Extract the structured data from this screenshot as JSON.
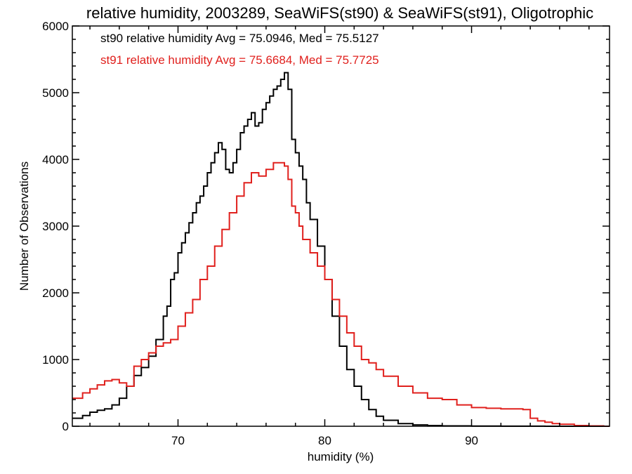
{
  "chart_data": {
    "type": "line",
    "title": "relative humidity, 2003289, SeaWiFS(st90) & SeaWiFS(st91), Oligotrophic",
    "xlabel": "humidity (%)",
    "ylabel": "Number of Observations",
    "xlim": [
      62.8,
      99.4
    ],
    "ylim": [
      0,
      6000
    ],
    "xticks": [
      70,
      80,
      90
    ],
    "yticks": [
      0,
      1000,
      2000,
      3000,
      4000,
      5000,
      6000
    ],
    "grid": false,
    "legend_placement": "top-left",
    "series": [
      {
        "legend": "st90 relative humidity Avg = 75.0946, Med = 75.5127",
        "color": "#000000",
        "x": [
          63,
          63.5,
          64,
          64.5,
          65,
          65.5,
          66,
          66.5,
          67,
          67.5,
          68,
          68.5,
          69,
          69.25,
          69.5,
          69.75,
          70,
          70.25,
          70.5,
          70.75,
          71,
          71.25,
          71.5,
          71.75,
          72,
          72.25,
          72.5,
          72.75,
          73,
          73.25,
          73.5,
          73.75,
          74,
          74.25,
          74.5,
          74.75,
          75,
          75.25,
          75.5,
          75.75,
          76,
          76.25,
          76.5,
          76.75,
          77,
          77.25,
          77.5,
          77.75,
          78,
          78.25,
          78.5,
          78.75,
          79,
          79.5,
          80,
          80.5,
          81,
          81.5,
          82,
          82.5,
          83,
          83.5,
          84,
          85,
          86,
          87,
          88,
          90,
          92,
          95,
          99
        ],
        "y": [
          120,
          160,
          210,
          240,
          260,
          320,
          420,
          600,
          760,
          880,
          1050,
          1300,
          1650,
          1800,
          2200,
          2300,
          2600,
          2750,
          2900,
          3050,
          3200,
          3350,
          3450,
          3600,
          3800,
          3950,
          4100,
          4250,
          4150,
          3850,
          3800,
          3950,
          4150,
          4400,
          4500,
          4600,
          4700,
          4500,
          4550,
          4750,
          4850,
          4950,
          5050,
          5100,
          5200,
          5300,
          5050,
          4300,
          4100,
          3900,
          3700,
          3350,
          3100,
          2700,
          2200,
          1650,
          1200,
          850,
          600,
          400,
          250,
          150,
          90,
          40,
          20,
          10,
          5,
          2,
          1,
          0,
          0
        ]
      },
      {
        "legend": "st91 relative humidity Avg = 75.6684, Med = 75.7725",
        "color": "#e0201d",
        "x": [
          63,
          63.5,
          64,
          64.5,
          65,
          65.5,
          66,
          66.5,
          67,
          67.5,
          68,
          68.5,
          69,
          69.5,
          70,
          70.5,
          71,
          71.5,
          72,
          72.5,
          73,
          73.5,
          74,
          74.5,
          75,
          75.5,
          76,
          76.5,
          77,
          77.25,
          77.5,
          77.75,
          78,
          78.25,
          78.5,
          79,
          79.5,
          80,
          80.5,
          81,
          81.5,
          82,
          82.5,
          83,
          83.5,
          84,
          85,
          86,
          87,
          88,
          89,
          90,
          91,
          92,
          93,
          93.5,
          94,
          94.5,
          95,
          95.5,
          96,
          97,
          98,
          99
        ],
        "y": [
          420,
          500,
          560,
          620,
          680,
          700,
          650,
          600,
          900,
          1000,
          1100,
          1200,
          1250,
          1300,
          1500,
          1700,
          1900,
          2200,
          2400,
          2700,
          2950,
          3200,
          3450,
          3650,
          3800,
          3750,
          3850,
          3950,
          3950,
          3900,
          3700,
          3300,
          3200,
          3000,
          2800,
          2600,
          2400,
          2200,
          1900,
          1650,
          1400,
          1200,
          1000,
          950,
          850,
          750,
          600,
          500,
          420,
          400,
          320,
          280,
          270,
          260,
          260,
          250,
          120,
          80,
          60,
          40,
          30,
          10,
          5,
          0
        ]
      }
    ]
  }
}
